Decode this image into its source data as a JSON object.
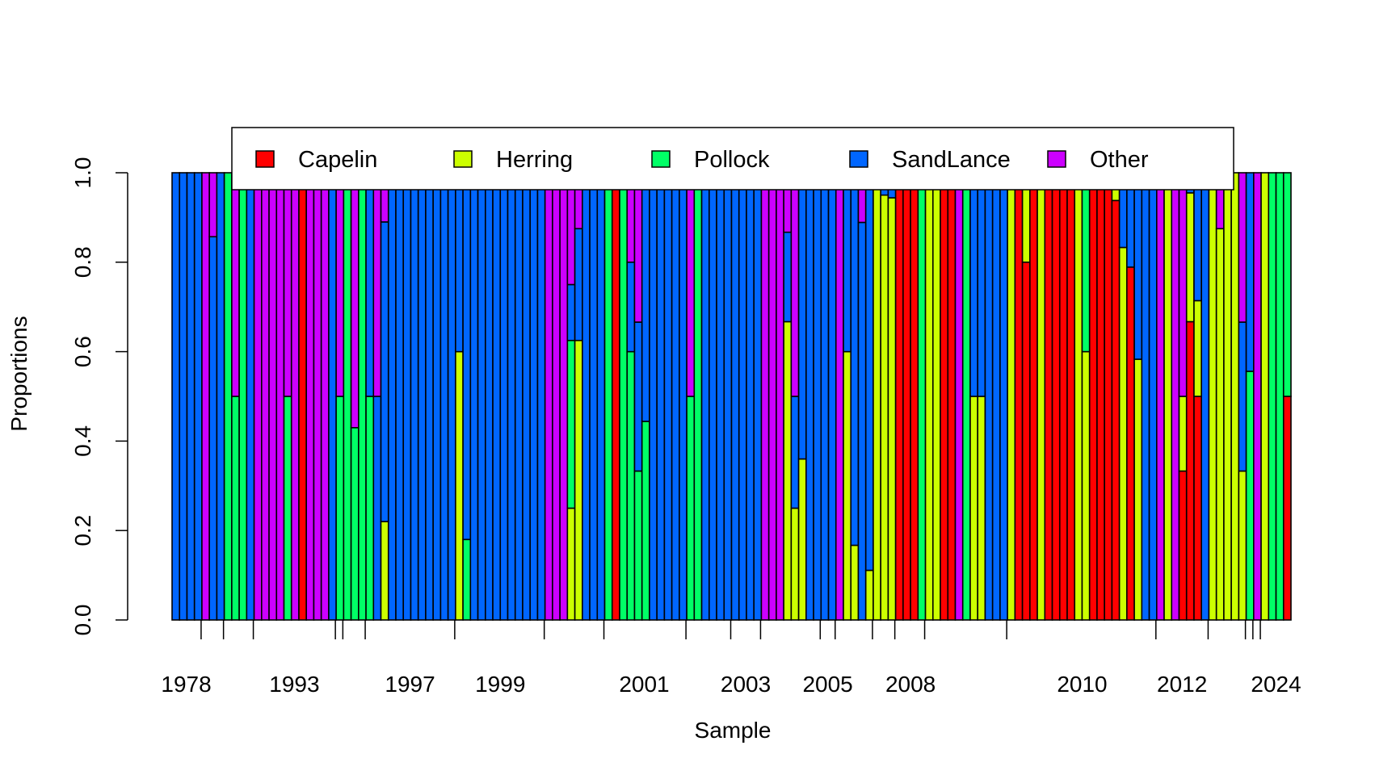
{
  "chart_data": {
    "type": "bar",
    "stacked": true,
    "xlabel": "Sample",
    "ylabel": "Proportions",
    "ylim": [
      0,
      1
    ],
    "y_ticks": [
      "0.0",
      "0.2",
      "0.4",
      "0.6",
      "0.8",
      "1.0"
    ],
    "x_tick_labels": [
      "1978",
      "1993",
      "1997",
      "1999",
      "2001",
      "2003",
      "2005",
      "2008",
      "2010",
      "2012",
      "2024"
    ],
    "legend_position": "top",
    "series": [
      {
        "name": "Capelin",
        "color": "#FF0000"
      },
      {
        "name": "Herring",
        "color": "#CCFF00"
      },
      {
        "name": "Pollock",
        "color": "#00FF66"
      },
      {
        "name": "SandLance",
        "color": "#0066FF"
      },
      {
        "name": "Other",
        "color": "#CC00FF"
      }
    ],
    "samples": [
      [
        0,
        0,
        0,
        1,
        0
      ],
      [
        0,
        0,
        0,
        1,
        0
      ],
      [
        0,
        0,
        0,
        1,
        0
      ],
      [
        0,
        0,
        0,
        1,
        0
      ],
      [
        0,
        0,
        0,
        0,
        1
      ],
      [
        0,
        0,
        0,
        0.857,
        0.143
      ],
      [
        0,
        0,
        0,
        1,
        0
      ],
      [
        0,
        0,
        1,
        0,
        0
      ],
      [
        0,
        0,
        0.5,
        0,
        0.5
      ],
      [
        0,
        0,
        1,
        0,
        0
      ],
      [
        0,
        0,
        0,
        1,
        0
      ],
      [
        0,
        0,
        0,
        0,
        1
      ],
      [
        0,
        0,
        0,
        0,
        1
      ],
      [
        0,
        0,
        0,
        0,
        1
      ],
      [
        0,
        0,
        0,
        0,
        1
      ],
      [
        0,
        0,
        0.5,
        0,
        0.5
      ],
      [
        0,
        0,
        0,
        0,
        1
      ],
      [
        1,
        0,
        0,
        0,
        0
      ],
      [
        0,
        0,
        0,
        0,
        1
      ],
      [
        0,
        0,
        0,
        0,
        1
      ],
      [
        0,
        0,
        0,
        0,
        1
      ],
      [
        0,
        0,
        0,
        1,
        0
      ],
      [
        0,
        0,
        0.5,
        0,
        0.5
      ],
      [
        0,
        0,
        1,
        0,
        0
      ],
      [
        0,
        0,
        0.43,
        0,
        0.57
      ],
      [
        0,
        0,
        1,
        0,
        0
      ],
      [
        0,
        0,
        0.5,
        0.5,
        0
      ],
      [
        0,
        0,
        0,
        0.5,
        0.5
      ],
      [
        0,
        0.22,
        0,
        0.67,
        0.11
      ],
      [
        0,
        0,
        0,
        1,
        0
      ],
      [
        0,
        0,
        0,
        1,
        0
      ],
      [
        0,
        0,
        0,
        1,
        0
      ],
      [
        0,
        0,
        0,
        1,
        0
      ],
      [
        0,
        0,
        0,
        1,
        0
      ],
      [
        0,
        0,
        0,
        1,
        0
      ],
      [
        0,
        0,
        0,
        1,
        0
      ],
      [
        0,
        0,
        0,
        1,
        0
      ],
      [
        0,
        0,
        0,
        1,
        0
      ],
      [
        0,
        0.6,
        0,
        0.4,
        0
      ],
      [
        0,
        0,
        0.18,
        0.82,
        0
      ],
      [
        0,
        0,
        0,
        1,
        0
      ],
      [
        0,
        0,
        0,
        1,
        0
      ],
      [
        0,
        0,
        0,
        1,
        0
      ],
      [
        0,
        0,
        0,
        1,
        0
      ],
      [
        0,
        0,
        0,
        1,
        0
      ],
      [
        0,
        0,
        0,
        1,
        0
      ],
      [
        0,
        0,
        0,
        1,
        0
      ],
      [
        0,
        0,
        0,
        1,
        0
      ],
      [
        0,
        0,
        0,
        1,
        0
      ],
      [
        0,
        0,
        0,
        1,
        0
      ],
      [
        0,
        0,
        0,
        0,
        1
      ],
      [
        0,
        0,
        0,
        0,
        1
      ],
      [
        0,
        0,
        0,
        0,
        1
      ],
      [
        0,
        0.25,
        0.375,
        0.125,
        0.25
      ],
      [
        0,
        0.625,
        0,
        0.25,
        0.125
      ],
      [
        0,
        0,
        0,
        1,
        0
      ],
      [
        0,
        0,
        0,
        1,
        0
      ],
      [
        0,
        0,
        0,
        1,
        0
      ],
      [
        0,
        0,
        1,
        0,
        0
      ],
      [
        1,
        0,
        0,
        0,
        0
      ],
      [
        0,
        0,
        1,
        0,
        0
      ],
      [
        0,
        0,
        0.6,
        0.2,
        0.2
      ],
      [
        0,
        0,
        0.333,
        0.333,
        0.334
      ],
      [
        0,
        0,
        0.444,
        0.556,
        0
      ],
      [
        0,
        0,
        0,
        1,
        0
      ],
      [
        0,
        0,
        0,
        1,
        0
      ],
      [
        0,
        0,
        0,
        1,
        0
      ],
      [
        0,
        0,
        0,
        1,
        0
      ],
      [
        0,
        0,
        0,
        1,
        0
      ],
      [
        0,
        0,
        0.5,
        0,
        0.5
      ],
      [
        0,
        0,
        1,
        0,
        0
      ],
      [
        0,
        0,
        0,
        1,
        0
      ],
      [
        0,
        0,
        0,
        1,
        0
      ],
      [
        0,
        0,
        0,
        1,
        0
      ],
      [
        0,
        0,
        0,
        1,
        0
      ],
      [
        0,
        0,
        0,
        1,
        0
      ],
      [
        0,
        0,
        0,
        1,
        0
      ],
      [
        0,
        0,
        0,
        1,
        0
      ],
      [
        0,
        0,
        0,
        1,
        0
      ],
      [
        0,
        0,
        0,
        0,
        1
      ],
      [
        0,
        0,
        0,
        0,
        1
      ],
      [
        0,
        0,
        0,
        0,
        1
      ],
      [
        0,
        0.667,
        0,
        0.2,
        0.133
      ],
      [
        0,
        0.25,
        0,
        0.25,
        0.5
      ],
      [
        0,
        0.36,
        0,
        0.64,
        0
      ],
      [
        0,
        0,
        0,
        1,
        0
      ],
      [
        0,
        0,
        0,
        1,
        0
      ],
      [
        0,
        0,
        0,
        1,
        0
      ],
      [
        0,
        0,
        0,
        1,
        0
      ],
      [
        0,
        0,
        0,
        0,
        1
      ],
      [
        0,
        0.6,
        0,
        0.4,
        0
      ],
      [
        0,
        0.167,
        0,
        0.833,
        0
      ],
      [
        0,
        0,
        0,
        0.889,
        0.111
      ],
      [
        0,
        0.111,
        0,
        0.889,
        0
      ],
      [
        0,
        1,
        0,
        0,
        0
      ],
      [
        0,
        0.95,
        0,
        0.05,
        0
      ],
      [
        0,
        0.944,
        0,
        0.056,
        0
      ],
      [
        1,
        0,
        0,
        0,
        0
      ],
      [
        1,
        0,
        0,
        0,
        0
      ],
      [
        1,
        0,
        0,
        0,
        0
      ],
      [
        0,
        0,
        1,
        0,
        0
      ],
      [
        0,
        1,
        0,
        0,
        0
      ],
      [
        0,
        1,
        0,
        0,
        0
      ],
      [
        1,
        0,
        0,
        0,
        0
      ],
      [
        1,
        0,
        0,
        0,
        0
      ],
      [
        0,
        0,
        0,
        0,
        1
      ],
      [
        0,
        0,
        1,
        0,
        0
      ],
      [
        0,
        0.5,
        0,
        0.5,
        0
      ],
      [
        0,
        0.5,
        0,
        0.5,
        0
      ],
      [
        0,
        0,
        0,
        1,
        0
      ],
      [
        0,
        0,
        0,
        1,
        0
      ],
      [
        0,
        0,
        0,
        1,
        0
      ],
      [
        0,
        1,
        0,
        0,
        0
      ],
      [
        1,
        0,
        0,
        0,
        0
      ],
      [
        0.8,
        0.2,
        0,
        0,
        0
      ],
      [
        1,
        0,
        0,
        0,
        0
      ],
      [
        0,
        1,
        0,
        0,
        0
      ],
      [
        1,
        0,
        0,
        0,
        0
      ],
      [
        1,
        0,
        0,
        0,
        0
      ],
      [
        1,
        0,
        0,
        0,
        0
      ],
      [
        1,
        0,
        0,
        0,
        0
      ],
      [
        0,
        1,
        0,
        0,
        0
      ],
      [
        0,
        0.6,
        0.4,
        0,
        0
      ],
      [
        1,
        0,
        0,
        0,
        0
      ],
      [
        1,
        0,
        0,
        0,
        0
      ],
      [
        1,
        0,
        0,
        0,
        0
      ],
      [
        0.938,
        0.062,
        0,
        0,
        0
      ],
      [
        0,
        0.833,
        0,
        0.167,
        0
      ],
      [
        0.789,
        0,
        0,
        0.211,
        0
      ],
      [
        0,
        0.583,
        0,
        0.417,
        0
      ],
      [
        0,
        0,
        0,
        1,
        0
      ],
      [
        0,
        0,
        0,
        1,
        0
      ],
      [
        0,
        0,
        0,
        0,
        1
      ],
      [
        0,
        1,
        0,
        0,
        0
      ],
      [
        0,
        0,
        0,
        0,
        1
      ],
      [
        0.333,
        0.167,
        0,
        0,
        0.5
      ],
      [
        0.667,
        0.288,
        0,
        0.045,
        0
      ],
      [
        0.5,
        0.214,
        0,
        0.286,
        0
      ],
      [
        0,
        0,
        0,
        1,
        0
      ],
      [
        0,
        1,
        0,
        0,
        0
      ],
      [
        0,
        0.875,
        0,
        0,
        0.125
      ],
      [
        0,
        1,
        0,
        0,
        0
      ],
      [
        0,
        1,
        0,
        0,
        0
      ],
      [
        0,
        0.333,
        0,
        0.333,
        0.334
      ],
      [
        0,
        0,
        0.556,
        0.444,
        0
      ],
      [
        0,
        0,
        0,
        0,
        1
      ],
      [
        0,
        1,
        0,
        0,
        0
      ],
      [
        0,
        0,
        1,
        0,
        0
      ],
      [
        0,
        0,
        1,
        0,
        0
      ],
      [
        0.5,
        0,
        0.5,
        0,
        0
      ]
    ]
  }
}
